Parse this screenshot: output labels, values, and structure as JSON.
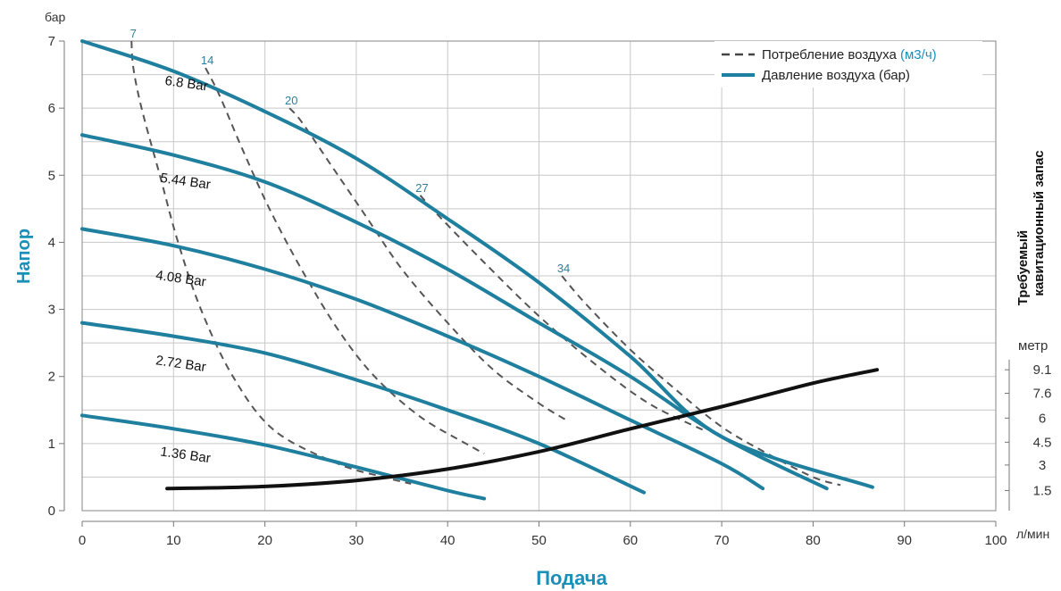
{
  "chart_data": {
    "type": "line",
    "title": "",
    "xlabel": "Подача",
    "ylabel": "Напор",
    "xunit": "л/мин",
    "yunit": "бар",
    "xlim": [
      0,
      100
    ],
    "ylim": [
      0,
      7
    ],
    "xticks": [
      "0",
      "10",
      "20",
      "30",
      "40",
      "50",
      "60",
      "70",
      "80",
      "90",
      "100"
    ],
    "yticks": [
      "0",
      "1",
      "2",
      "3",
      "4",
      "5",
      "6",
      "7"
    ],
    "grid": true,
    "legend_position": "top-right",
    "legend": [
      {
        "label": "Потребление воздуха",
        "unit": "(м3/ч)",
        "style": "dashed",
        "color": "#444444"
      },
      {
        "label": "Давление воздуха (бар)",
        "unit": "",
        "style": "solid",
        "color": "#1f7f9e"
      }
    ],
    "pressure_series": [
      {
        "name": "6.8 Bar",
        "color": "#1f7f9e",
        "points": [
          [
            0,
            7.0
          ],
          [
            10,
            6.55
          ],
          [
            20,
            5.95
          ],
          [
            30,
            5.25
          ],
          [
            40,
            4.35
          ],
          [
            50,
            3.4
          ],
          [
            60,
            2.3
          ],
          [
            70,
            1.1
          ],
          [
            86.5,
            0.35
          ]
        ]
      },
      {
        "name": "5.44 Bar",
        "color": "#1f7f9e",
        "points": [
          [
            0,
            5.6
          ],
          [
            10,
            5.3
          ],
          [
            20,
            4.9
          ],
          [
            30,
            4.3
          ],
          [
            40,
            3.6
          ],
          [
            50,
            2.8
          ],
          [
            60,
            2.0
          ],
          [
            70,
            1.1
          ],
          [
            81.5,
            0.33
          ]
        ]
      },
      {
        "name": "4.08 Bar",
        "color": "#1f7f9e",
        "points": [
          [
            0,
            4.2
          ],
          [
            10,
            3.95
          ],
          [
            20,
            3.6
          ],
          [
            30,
            3.15
          ],
          [
            40,
            2.6
          ],
          [
            50,
            2.0
          ],
          [
            60,
            1.35
          ],
          [
            70,
            0.7
          ],
          [
            74.5,
            0.33
          ]
        ]
      },
      {
        "name": "2.72 Bar",
        "color": "#1f7f9e",
        "points": [
          [
            0,
            2.8
          ],
          [
            10,
            2.6
          ],
          [
            20,
            2.35
          ],
          [
            30,
            1.95
          ],
          [
            40,
            1.5
          ],
          [
            50,
            1.0
          ],
          [
            61.5,
            0.27
          ]
        ]
      },
      {
        "name": "1.36 Bar",
        "color": "#1f7f9e",
        "points": [
          [
            0,
            1.42
          ],
          [
            10,
            1.22
          ],
          [
            20,
            0.98
          ],
          [
            30,
            0.65
          ],
          [
            40,
            0.3
          ],
          [
            44,
            0.18
          ]
        ]
      }
    ],
    "air_consumption_series": [
      {
        "name": "7",
        "points": [
          [
            5.4,
            7.0
          ],
          [
            5.6,
            6.6
          ],
          [
            6.5,
            6.0
          ],
          [
            8.5,
            5.0
          ],
          [
            10.5,
            4.0
          ],
          [
            13,
            3.0
          ],
          [
            16.5,
            2.0
          ],
          [
            21,
            1.2
          ],
          [
            28,
            0.7
          ],
          [
            33,
            0.5
          ],
          [
            36,
            0.4
          ]
        ]
      },
      {
        "name": "14",
        "points": [
          [
            13.5,
            6.6
          ],
          [
            15,
            6.2
          ],
          [
            17.5,
            5.4
          ],
          [
            20.5,
            4.5
          ],
          [
            24,
            3.6
          ],
          [
            28,
            2.7
          ],
          [
            32,
            2.0
          ],
          [
            37,
            1.4
          ],
          [
            42,
            1.0
          ],
          [
            44,
            0.85
          ]
        ]
      },
      {
        "name": "20",
        "points": [
          [
            22.7,
            6.0
          ],
          [
            24,
            5.8
          ],
          [
            27,
            5.2
          ],
          [
            31,
            4.4
          ],
          [
            35,
            3.6
          ],
          [
            40,
            2.8
          ],
          [
            45,
            2.1
          ],
          [
            50,
            1.6
          ],
          [
            53,
            1.35
          ]
        ]
      },
      {
        "name": "27",
        "points": [
          [
            37,
            4.7
          ],
          [
            39,
            4.4
          ],
          [
            44,
            3.7
          ],
          [
            50,
            2.9
          ],
          [
            56,
            2.2
          ],
          [
            62,
            1.6
          ],
          [
            68,
            1.2
          ]
        ]
      },
      {
        "name": "34",
        "points": [
          [
            52.5,
            3.5
          ],
          [
            55,
            3.1
          ],
          [
            60,
            2.4
          ],
          [
            65,
            1.8
          ],
          [
            70,
            1.25
          ],
          [
            75,
            0.85
          ],
          [
            80,
            0.5
          ],
          [
            83,
            0.38
          ]
        ]
      }
    ],
    "npsh_series": {
      "name": "Требуемый кавитационный запас",
      "color": "#111111",
      "points": [
        [
          9.3,
          0.33
        ],
        [
          20,
          0.36
        ],
        [
          30,
          0.45
        ],
        [
          40,
          0.62
        ],
        [
          50,
          0.88
        ],
        [
          60,
          1.22
        ],
        [
          70,
          1.55
        ],
        [
          80,
          1.9
        ],
        [
          87,
          2.1
        ]
      ]
    },
    "right_axis": {
      "title_line1": "Требуемый",
      "title_line2": "кавитационный запас",
      "unit": "метр",
      "ticks": [
        {
          "label": "1.5",
          "y": 0.3
        },
        {
          "label": "3",
          "y": 0.68
        },
        {
          "label": "4.5",
          "y": 1.02
        },
        {
          "label": "6",
          "y": 1.38
        },
        {
          "label": "7.6",
          "y": 1.75
        },
        {
          "label": "9.1",
          "y": 2.1
        }
      ]
    },
    "series_labels": {
      "pressure": [
        "6.8 Bar",
        "5.44 Bar",
        "4.08 Bar",
        "2.72 Bar",
        "1.36 Bar"
      ],
      "air": [
        "7",
        "14",
        "20",
        "27",
        "34"
      ]
    }
  }
}
